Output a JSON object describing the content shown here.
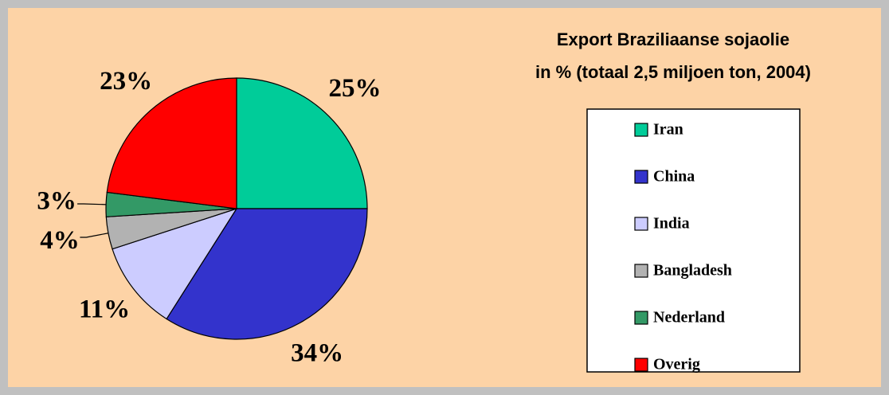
{
  "chart_data": {
    "type": "pie",
    "title": [
      "Export Braziliaanse sojaolie",
      "in % (totaal 2,5 miljoen ton, 2004)"
    ],
    "categories": [
      "Iran",
      "China",
      "India",
      "Bangladesh",
      "Nederland",
      "Overig"
    ],
    "values": [
      25,
      34,
      11,
      4,
      3,
      23
    ],
    "value_labels": [
      "25%",
      "34%",
      "11%",
      "4%",
      "3%",
      "23%"
    ],
    "colors": [
      "#00cc99",
      "#3333cc",
      "#ccccff",
      "#b2b2b2",
      "#339966",
      "#ff0000"
    ],
    "legend": "right"
  }
}
